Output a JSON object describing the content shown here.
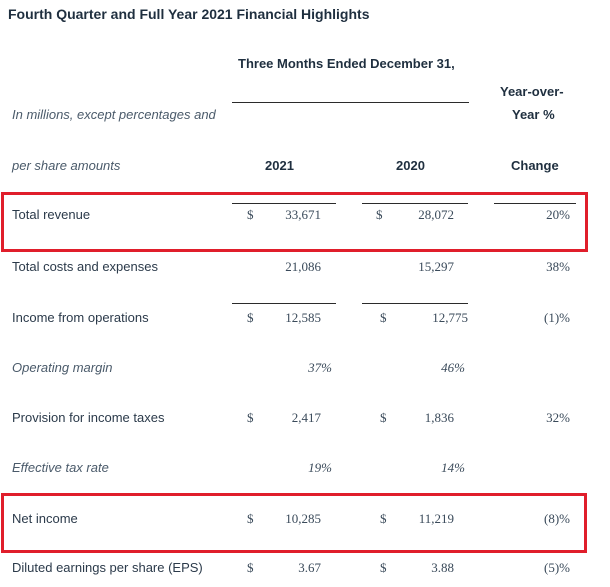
{
  "title": "Fourth Quarter and Full Year 2021 Financial Highlights",
  "header": {
    "period": "Three Months Ended December 31,",
    "units_line1": "In millions, except percentages and",
    "units_line2": "per share amounts",
    "yoy_line1": "Year-over-",
    "yoy_line2": "Year %",
    "change": "Change",
    "col_2021": "2021",
    "col_2020": "2020"
  },
  "rows": [
    {
      "label": "Total revenue",
      "cur1": "$",
      "v2021": "33,671",
      "cur2": "$",
      "v2020": "28,072",
      "change": "20%"
    },
    {
      "label": "Total costs and expenses",
      "cur1": "",
      "v2021": "21,086",
      "cur2": "",
      "v2020": "15,297",
      "change": "38%"
    },
    {
      "label": "Income from operations",
      "cur1": "$",
      "v2021": "12,585",
      "cur2": "$",
      "v2020": "12,775",
      "change": "(1)%"
    },
    {
      "label": "Operating margin",
      "cur1": "",
      "v2021": "37%",
      "cur2": "",
      "v2020": "46%",
      "change": ""
    },
    {
      "label": "Provision for income taxes",
      "cur1": "$",
      "v2021": "2,417",
      "cur2": "$",
      "v2020": "1,836",
      "change": "32%"
    },
    {
      "label": "Effective tax rate",
      "cur1": "",
      "v2021": "19%",
      "cur2": "",
      "v2020": "14%",
      "change": ""
    },
    {
      "label": "Net income",
      "cur1": "$",
      "v2021": "10,285",
      "cur2": "$",
      "v2020": "11,219",
      "change": "(8)%"
    },
    {
      "label": "Diluted earnings per share (EPS)",
      "cur1": "$",
      "v2021": "3.67",
      "cur2": "$",
      "v2020": "3.88",
      "change": "(5)%"
    }
  ],
  "highlight_color": "#e01e2b"
}
